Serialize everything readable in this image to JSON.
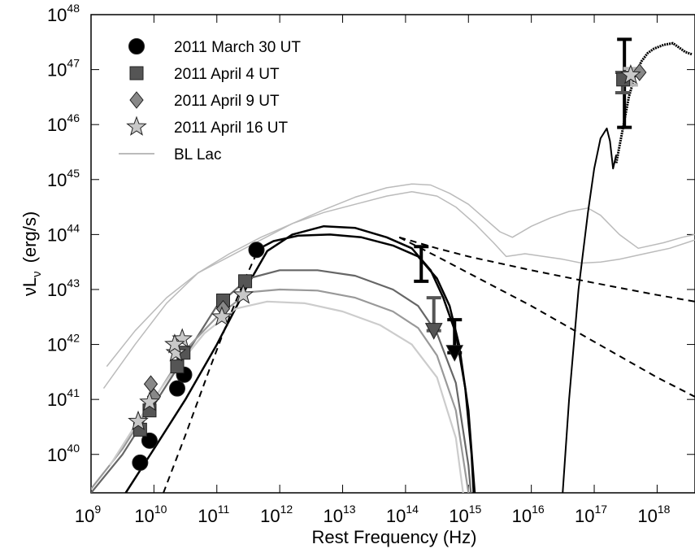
{
  "chart_data": {
    "type": "scatter",
    "xlabel": "Rest Frequency  (Hz)",
    "ylabel_main": "νL",
    "ylabel_sub": "ν",
    "ylabel_unit": "(erg/s)",
    "xscale": "log",
    "yscale": "log",
    "xlim": [
      1000000000.0,
      4e+18
    ],
    "ylim": [
      2e+39,
      1e+48
    ],
    "grid": false,
    "legend_position": "top-left",
    "x_ticks": [
      {
        "base": "10",
        "exp": "9",
        "value": 9
      },
      {
        "base": "10",
        "exp": "10",
        "value": 10
      },
      {
        "base": "10",
        "exp": "11",
        "value": 11
      },
      {
        "base": "10",
        "exp": "12",
        "value": 12
      },
      {
        "base": "10",
        "exp": "13",
        "value": 13
      },
      {
        "base": "10",
        "exp": "14",
        "value": 14
      },
      {
        "base": "10",
        "exp": "15",
        "value": 15
      },
      {
        "base": "10",
        "exp": "16",
        "value": 16
      },
      {
        "base": "10",
        "exp": "17",
        "value": 17
      },
      {
        "base": "10",
        "exp": "18",
        "value": 18
      }
    ],
    "y_ticks": [
      {
        "base": "10",
        "exp": "40",
        "value": 40
      },
      {
        "base": "10",
        "exp": "41",
        "value": 41
      },
      {
        "base": "10",
        "exp": "42",
        "value": 42
      },
      {
        "base": "10",
        "exp": "43",
        "value": 43
      },
      {
        "base": "10",
        "exp": "44",
        "value": 44
      },
      {
        "base": "10",
        "exp": "45",
        "value": 45
      },
      {
        "base": "10",
        "exp": "46",
        "value": 46
      },
      {
        "base": "10",
        "exp": "47",
        "value": 47
      },
      {
        "base": "10",
        "exp": "48",
        "value": 48
      }
    ],
    "legend": [
      {
        "label": "2011 March 30 UT",
        "marker": "circle",
        "color": "#000000"
      },
      {
        "label": "2011 April 4 UT",
        "marker": "square",
        "color": "#555555"
      },
      {
        "label": "2011 April 9 UT",
        "marker": "diamond",
        "color": "#888888"
      },
      {
        "label": "2011 April 16 UT",
        "marker": "star",
        "color": "#c8c8c8"
      },
      {
        "label": "BL Lac",
        "marker": "line",
        "color": "#bbbbbb"
      }
    ],
    "series": [
      {
        "name": "2011 March 30 UT",
        "marker": "circle",
        "color": "#000000",
        "points": [
          [
            9.78,
            39.85
          ],
          [
            9.93,
            40.25
          ],
          [
            10.37,
            41.2
          ],
          [
            10.48,
            41.45
          ],
          [
            11.63,
            43.72
          ]
        ]
      },
      {
        "name": "2011 April 4 UT",
        "marker": "square",
        "color": "#555555",
        "points": [
          [
            9.78,
            40.45
          ],
          [
            9.93,
            40.8
          ],
          [
            10.37,
            41.6
          ],
          [
            10.47,
            41.85
          ],
          [
            11.1,
            42.8
          ],
          [
            11.45,
            43.15
          ]
        ]
      },
      {
        "name": "2011 April 9 UT",
        "marker": "diamond",
        "color": "#888888",
        "points": [
          [
            9.95,
            41.28
          ],
          [
            10.0,
            41.05
          ],
          [
            11.1,
            42.65
          ]
        ]
      },
      {
        "name": "2011 April 16 UT",
        "marker": "star",
        "color": "#c8c8c8",
        "points": [
          [
            9.75,
            40.6
          ],
          [
            9.93,
            40.95
          ],
          [
            10.35,
            41.85
          ],
          [
            10.45,
            42.1
          ],
          [
            10.33,
            42.0
          ],
          [
            11.08,
            42.5
          ],
          [
            11.42,
            42.9
          ]
        ]
      }
    ],
    "triangles": [
      {
        "x": 14.45,
        "y": 42.25,
        "color": "#555555"
      },
      {
        "x": 14.78,
        "y": 41.85,
        "color": "#000000"
      }
    ],
    "error_bars": [
      {
        "x": 14.25,
        "ylow": 43.15,
        "yhigh": 43.78,
        "color": "#000000"
      },
      {
        "x": 14.45,
        "ylow": 42.25,
        "yhigh": 42.85,
        "color": "#555555"
      },
      {
        "x": 14.78,
        "ylow": 41.85,
        "yhigh": 42.45,
        "color": "#000000"
      },
      {
        "x": 17.48,
        "ylow": 45.95,
        "yhigh": 47.55,
        "color": "#000000"
      },
      {
        "x": 17.45,
        "ylow": 46.58,
        "yhigh": 46.95,
        "color": "#555555"
      },
      {
        "x": 17.58,
        "ylow": 46.72,
        "yhigh": 47.02,
        "color": "#b5b5b5"
      }
    ],
    "xray_points": [
      {
        "x": 17.46,
        "y": 46.82,
        "marker": "square",
        "color": "#555555"
      },
      {
        "x": 17.72,
        "y": 46.95,
        "marker": "diamond",
        "color": "#888888"
      },
      {
        "x": 17.58,
        "y": 46.9,
        "marker": "star",
        "color": "#c8c8c8"
      }
    ],
    "curves": [
      {
        "name": "model-march30-a",
        "color": "#000000",
        "width": 2.5,
        "dash": "",
        "points": [
          [
            9.55,
            39.3
          ],
          [
            10.0,
            40.1
          ],
          [
            10.5,
            41.0
          ],
          [
            11.0,
            42.0
          ],
          [
            11.5,
            43.1
          ],
          [
            11.8,
            43.7
          ],
          [
            12.2,
            44.0
          ],
          [
            12.7,
            44.15
          ],
          [
            13.2,
            44.12
          ],
          [
            13.7,
            43.95
          ],
          [
            14.1,
            43.75
          ],
          [
            14.4,
            43.35
          ],
          [
            14.6,
            42.85
          ],
          [
            14.8,
            42.2
          ],
          [
            14.95,
            41.2
          ],
          [
            15.05,
            40.0
          ],
          [
            15.12,
            38.5
          ]
        ]
      },
      {
        "name": "model-march30-b",
        "color": "#000000",
        "width": 2.5,
        "dash": "",
        "points": [
          [
            11.6,
            43.7
          ],
          [
            11.9,
            43.88
          ],
          [
            12.3,
            43.98
          ],
          [
            12.8,
            44.0
          ],
          [
            13.3,
            43.95
          ],
          [
            13.8,
            43.8
          ],
          [
            14.2,
            43.6
          ],
          [
            14.5,
            43.2
          ],
          [
            14.7,
            42.7
          ],
          [
            14.85,
            42.0
          ],
          [
            15.0,
            40.8
          ],
          [
            15.1,
            39.3
          ],
          [
            15.15,
            38.5
          ]
        ]
      },
      {
        "name": "model-april4",
        "color": "#666666",
        "width": 2.2,
        "dash": "",
        "points": [
          [
            9.0,
            39.3
          ],
          [
            9.5,
            40.0
          ],
          [
            10.0,
            40.9
          ],
          [
            10.5,
            41.8
          ],
          [
            11.0,
            42.7
          ],
          [
            11.5,
            43.2
          ],
          [
            12.0,
            43.35
          ],
          [
            12.6,
            43.35
          ],
          [
            13.2,
            43.25
          ],
          [
            13.8,
            43.0
          ],
          [
            14.2,
            42.7
          ],
          [
            14.5,
            42.2
          ],
          [
            14.8,
            41.3
          ],
          [
            15.0,
            39.8
          ],
          [
            15.1,
            38.5
          ]
        ]
      },
      {
        "name": "model-april9",
        "color": "#999999",
        "width": 2.2,
        "dash": "",
        "points": [
          [
            8.95,
            39.3
          ],
          [
            9.5,
            40.1
          ],
          [
            10.0,
            41.0
          ],
          [
            10.5,
            41.9
          ],
          [
            11.0,
            42.5
          ],
          [
            11.5,
            42.95
          ],
          [
            12.0,
            43.0
          ],
          [
            12.6,
            42.98
          ],
          [
            13.2,
            42.85
          ],
          [
            13.8,
            42.6
          ],
          [
            14.2,
            42.3
          ],
          [
            14.5,
            41.8
          ],
          [
            14.8,
            40.8
          ],
          [
            15.0,
            39.3
          ],
          [
            15.05,
            38.5
          ]
        ]
      },
      {
        "name": "model-april16",
        "color": "#cccccc",
        "width": 2.2,
        "dash": "",
        "points": [
          [
            9.3,
            39.8
          ],
          [
            9.8,
            40.7
          ],
          [
            10.3,
            41.5
          ],
          [
            10.8,
            42.2
          ],
          [
            11.3,
            42.65
          ],
          [
            11.8,
            42.78
          ],
          [
            12.4,
            42.75
          ],
          [
            13.0,
            42.6
          ],
          [
            13.6,
            42.35
          ],
          [
            14.1,
            42.0
          ],
          [
            14.5,
            41.4
          ],
          [
            14.8,
            40.3
          ],
          [
            14.95,
            39.0
          ],
          [
            15.0,
            38.5
          ]
        ]
      },
      {
        "name": "blazar-lac-upper",
        "color": "#bbbbbb",
        "width": 1.5,
        "dash": "",
        "points": [
          [
            9.25,
            41.6
          ],
          [
            9.7,
            42.25
          ],
          [
            10.2,
            42.85
          ],
          [
            10.7,
            43.3
          ],
          [
            11.2,
            43.6
          ],
          [
            11.7,
            43.9
          ],
          [
            12.2,
            44.2
          ],
          [
            12.7,
            44.45
          ],
          [
            13.2,
            44.68
          ],
          [
            13.7,
            44.85
          ],
          [
            14.1,
            44.92
          ],
          [
            14.4,
            44.9
          ],
          [
            14.7,
            44.75
          ],
          [
            15.0,
            44.55
          ],
          [
            15.25,
            44.3
          ],
          [
            15.5,
            44.05
          ],
          [
            15.7,
            43.95
          ],
          [
            16.0,
            44.15
          ],
          [
            16.3,
            44.3
          ],
          [
            16.6,
            44.42
          ],
          [
            16.9,
            44.48
          ],
          [
            17.1,
            44.35
          ],
          [
            17.4,
            44.0
          ],
          [
            17.7,
            43.75
          ],
          [
            18.1,
            43.85
          ],
          [
            18.4,
            43.95
          ],
          [
            18.6,
            44.0
          ]
        ]
      },
      {
        "name": "blazar-lac-lower",
        "color": "#bbbbbb",
        "width": 1.5,
        "dash": "",
        "points": [
          [
            9.2,
            41.2
          ],
          [
            9.7,
            42.0
          ],
          [
            10.2,
            42.75
          ],
          [
            10.7,
            43.3
          ],
          [
            11.2,
            43.65
          ],
          [
            11.7,
            43.95
          ],
          [
            12.2,
            44.2
          ],
          [
            12.7,
            44.4
          ],
          [
            13.2,
            44.55
          ],
          [
            13.7,
            44.7
          ],
          [
            14.1,
            44.78
          ],
          [
            14.5,
            44.7
          ],
          [
            14.8,
            44.5
          ],
          [
            15.1,
            44.2
          ],
          [
            15.4,
            43.85
          ],
          [
            15.6,
            43.6
          ],
          [
            15.9,
            43.65
          ],
          [
            16.2,
            43.6
          ],
          [
            16.5,
            43.55
          ],
          [
            16.8,
            43.48
          ],
          [
            17.1,
            43.5
          ],
          [
            17.4,
            43.55
          ],
          [
            17.8,
            43.65
          ],
          [
            18.2,
            43.75
          ],
          [
            18.6,
            43.9
          ]
        ]
      },
      {
        "name": "dashed-lower",
        "color": "#000000",
        "width": 2,
        "dash": "8,6",
        "points": [
          [
            10.15,
            39.3
          ],
          [
            10.5,
            40.35
          ],
          [
            10.9,
            41.6
          ],
          [
            11.2,
            42.5
          ],
          [
            11.45,
            43.2
          ],
          [
            11.65,
            43.7
          ]
        ]
      },
      {
        "name": "dashed-powerlaw-flat",
        "color": "#000000",
        "width": 2,
        "dash": "8,6",
        "points": [
          [
            13.9,
            43.95
          ],
          [
            14.5,
            43.75
          ],
          [
            15.0,
            43.6
          ],
          [
            16.0,
            43.35
          ],
          [
            17.0,
            43.12
          ],
          [
            18.0,
            42.9
          ],
          [
            18.6,
            42.78
          ]
        ]
      },
      {
        "name": "dashed-powerlaw-steep",
        "color": "#000000",
        "width": 2,
        "dash": "8,6",
        "points": [
          [
            13.9,
            43.95
          ],
          [
            14.5,
            43.6
          ],
          [
            15.0,
            43.3
          ],
          [
            16.0,
            42.7
          ],
          [
            17.0,
            42.05
          ],
          [
            18.0,
            41.4
          ],
          [
            18.6,
            41.05
          ]
        ]
      },
      {
        "name": "xray-rise",
        "color": "#000000",
        "width": 2,
        "dash": "",
        "points": [
          [
            16.45,
            38.5
          ],
          [
            16.6,
            41.0
          ],
          [
            16.75,
            43.0
          ],
          [
            16.9,
            44.4
          ],
          [
            17.0,
            45.2
          ],
          [
            17.1,
            45.75
          ],
          [
            17.2,
            45.93
          ],
          [
            17.25,
            45.7
          ],
          [
            17.3,
            45.2
          ],
          [
            17.35,
            45.45
          ]
        ]
      },
      {
        "name": "xray-data",
        "color": "#000000",
        "width": 3,
        "dash": "2,1",
        "points": [
          [
            17.35,
            45.3
          ],
          [
            17.45,
            45.9
          ],
          [
            17.55,
            46.5
          ],
          [
            17.65,
            46.9
          ],
          [
            17.75,
            47.15
          ],
          [
            17.85,
            47.3
          ],
          [
            17.95,
            47.38
          ],
          [
            18.1,
            47.45
          ],
          [
            18.25,
            47.48
          ],
          [
            18.35,
            47.4
          ],
          [
            18.45,
            47.32
          ],
          [
            18.55,
            47.28
          ]
        ]
      }
    ]
  }
}
